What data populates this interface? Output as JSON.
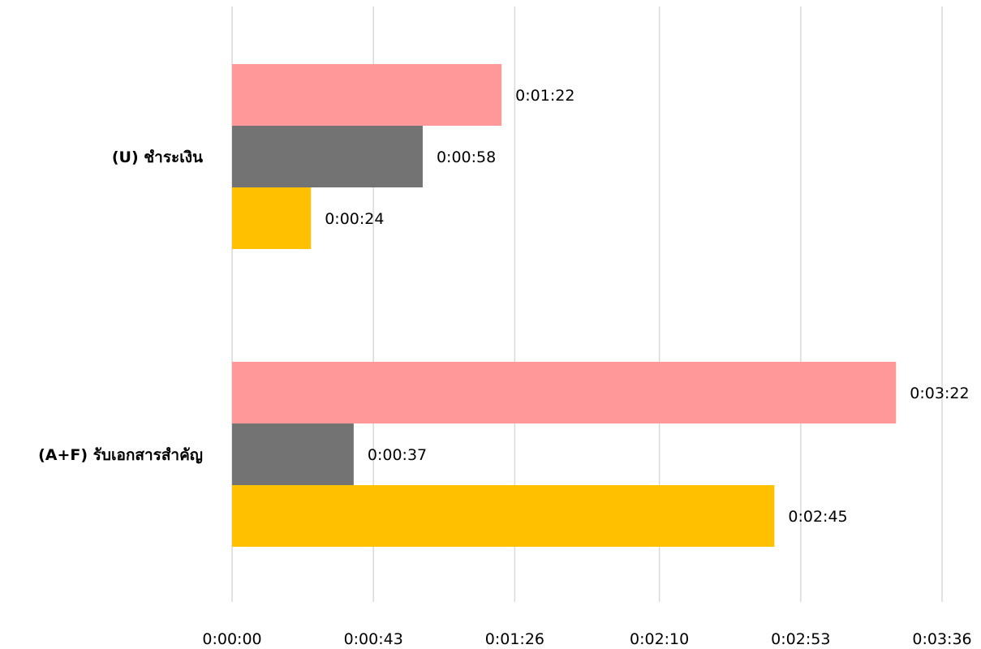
{
  "chart_data": {
    "type": "bar",
    "orientation": "horizontal",
    "grid": true,
    "legend": "none",
    "x_unit": "h:mm:ss",
    "xlim": [
      "0:00:00",
      "0:03:36"
    ],
    "x_ticks": [
      "0:00:00",
      "0:00:43",
      "0:01:26",
      "0:02:10",
      "0:02:53",
      "0:03:36"
    ],
    "categories": [
      "(U) ชำระเงิน",
      "(A+F) รับเอกสารสำคัญ"
    ],
    "series": [
      {
        "color": "#ff9999",
        "values": [
          "0:01:22",
          "0:03:22"
        ],
        "labels": [
          "0:01:22",
          "0:03:22"
        ]
      },
      {
        "color": "#737373",
        "values": [
          "0:00:58",
          "0:00:37"
        ],
        "labels": [
          "0:00:58",
          "0:00:37"
        ]
      },
      {
        "color": "#ffc000",
        "values": [
          "0:00:24",
          "0:02:45"
        ],
        "labels": [
          "0:00:24",
          "0:02:45"
        ]
      }
    ]
  }
}
